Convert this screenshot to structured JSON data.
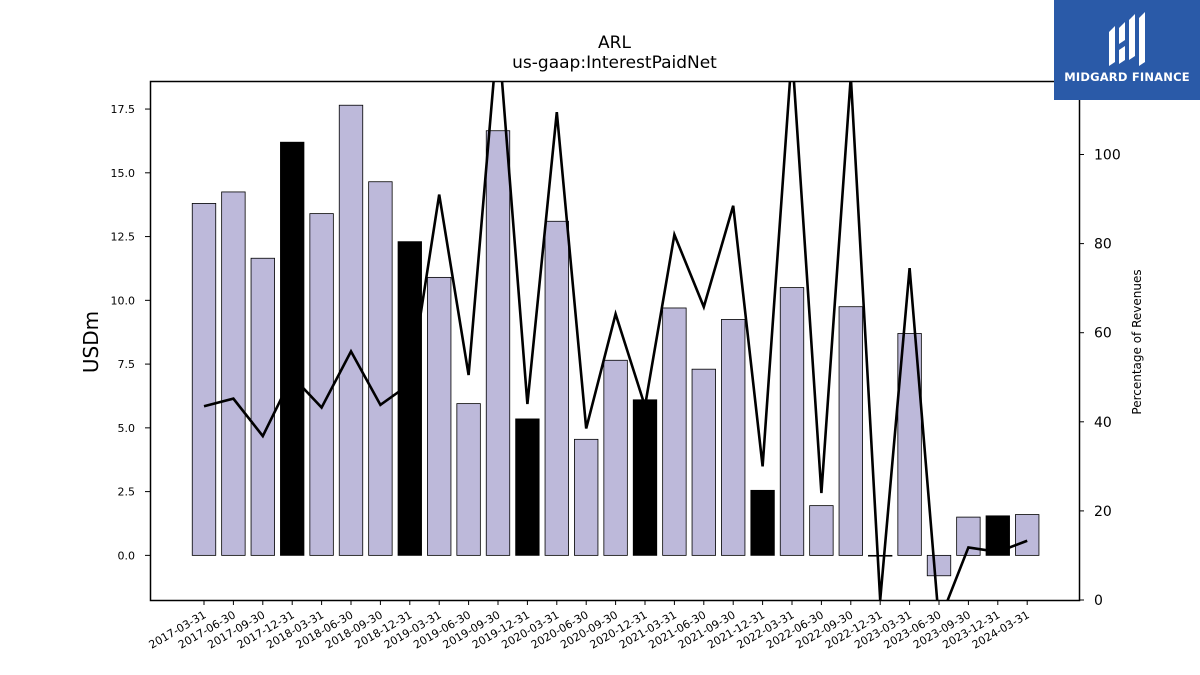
{
  "chart_data": {
    "type": "bar",
    "title": "ARL",
    "subtitle": "us-gaap:InterestPaidNet",
    "ylabel": "USDm",
    "y2label": "Percentage of Revenues",
    "ylim": [
      -1.75,
      18.6
    ],
    "y2lim": [
      0,
      116.5
    ],
    "yticks": [
      0.0,
      2.5,
      5.0,
      7.5,
      10.0,
      12.5,
      15.0,
      17.5
    ],
    "ytick_labels": [
      "0.0",
      "2.5",
      "5.0",
      "7.5",
      "10.0",
      "12.5",
      "15.0",
      "17.5"
    ],
    "y2ticks": [
      0,
      20,
      40,
      60,
      80,
      100
    ],
    "y2tick_labels": [
      "0",
      "20",
      "40",
      "60",
      "80",
      "100"
    ],
    "categories": [
      "2017-03-31",
      "2017-06-30",
      "2017-09-30",
      "2017-12-31",
      "2018-03-31",
      "2018-06-30",
      "2018-09-30",
      "2018-12-31",
      "2019-03-31",
      "2019-06-30",
      "2019-09-30",
      "2019-12-31",
      "2020-03-31",
      "2020-06-30",
      "2020-09-30",
      "2020-12-31",
      "2021-03-31",
      "2021-06-30",
      "2021-09-30",
      "2021-12-31",
      "2022-03-31",
      "2022-06-30",
      "2022-09-30",
      "2022-12-31",
      "2023-03-31",
      "2023-06-30",
      "2023-09-30",
      "2023-12-31",
      "2024-03-31"
    ],
    "series": [
      {
        "type": "bar",
        "values": [
          13.8,
          14.25,
          11.65,
          16.2,
          13.4,
          17.65,
          14.65,
          12.3,
          10.9,
          5.95,
          16.65,
          5.35,
          13.1,
          4.55,
          7.65,
          6.1,
          9.7,
          7.3,
          9.25,
          2.55,
          10.5,
          1.95,
          9.75,
          0.0,
          8.7,
          -0.8,
          1.5,
          1.55,
          1.6
        ],
        "highlight": [
          false,
          false,
          false,
          true,
          false,
          false,
          false,
          true,
          false,
          false,
          false,
          true,
          false,
          false,
          false,
          true,
          false,
          false,
          false,
          true,
          false,
          false,
          false,
          true,
          false,
          false,
          false,
          true,
          false
        ],
        "color": "#bdb9da",
        "highlight_color": "#000000"
      },
      {
        "type": "line",
        "axis": "right",
        "values": [
          43.5,
          45.2,
          36.8,
          50.2,
          43.2,
          55.8,
          43.8,
          48.5,
          91.0,
          50.5,
          128.0,
          44.0,
          109.5,
          38.5,
          64.2,
          43.5,
          82.0,
          65.8,
          88.5,
          30.0,
          123.0,
          24.0,
          117.5,
          0.0,
          74.5,
          -5.0,
          11.8,
          10.8,
          13.3
        ],
        "color": "#000000"
      }
    ],
    "grid": false
  },
  "logo": {
    "text": "MIDGARD FINANCE"
  }
}
